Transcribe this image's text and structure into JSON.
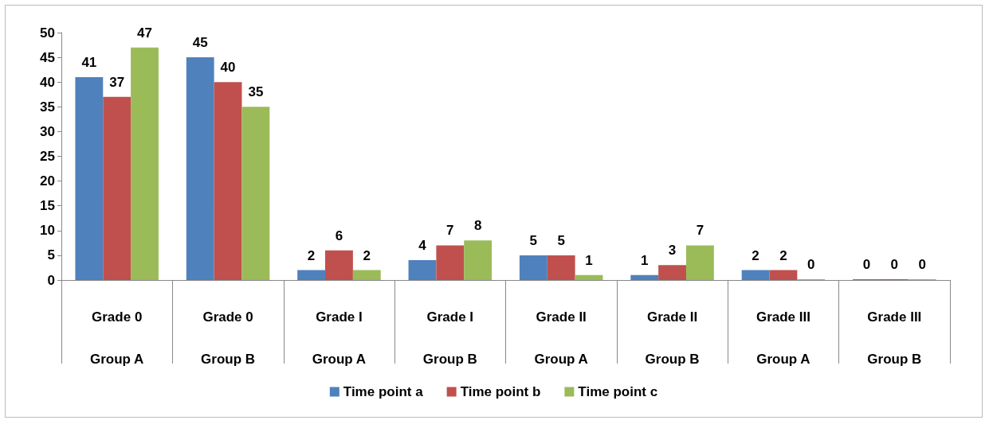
{
  "chart_data": {
    "type": "bar",
    "categories": [
      "Grade 0\nGroup A",
      "Grade 0\nGroup B",
      "Grade I\nGroup A",
      "Grade I\nGroup B",
      "Grade II\nGroup A",
      "Grade II\nGroup B",
      "Grade III\nGroup A",
      "Grade III\nGroup B"
    ],
    "series": [
      {
        "name": "Time point a",
        "color": "#4f81bd",
        "values": [
          41,
          45,
          2,
          4,
          5,
          1,
          2,
          0
        ]
      },
      {
        "name": "Time point b",
        "color": "#c0504d",
        "values": [
          37,
          40,
          6,
          7,
          5,
          3,
          2,
          0
        ]
      },
      {
        "name": "Time point c",
        "color": "#9bbb59",
        "values": [
          47,
          35,
          2,
          8,
          1,
          7,
          0,
          0
        ]
      }
    ],
    "ylim": [
      0,
      50
    ],
    "yticks": [
      0,
      5,
      10,
      15,
      20,
      25,
      30,
      35,
      40,
      45,
      50
    ],
    "grid": false,
    "legend": "bottom",
    "data_labels": true
  }
}
